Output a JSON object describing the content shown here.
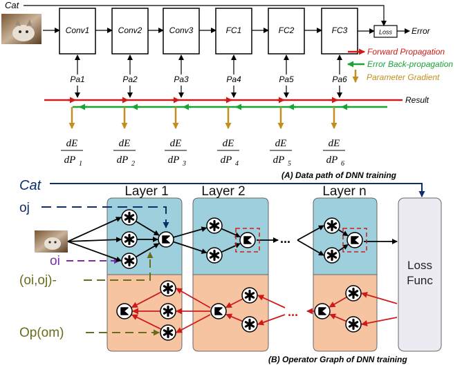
{
  "top": {
    "cat_label": "Cat",
    "layers": [
      "Conv1",
      "Conv2",
      "Conv3",
      "FC1",
      "FC2",
      "FC3"
    ],
    "params": [
      "Pa1",
      "Pa2",
      "Pa3",
      "Pa4",
      "Pa5",
      "Pa6"
    ],
    "loss_label": "Loss",
    "error_label": "Error",
    "result_label": "Result",
    "gradients": [
      {
        "num": "dE",
        "den": "dP",
        "sub": "1"
      },
      {
        "num": "dE",
        "den": "dP",
        "sub": "2"
      },
      {
        "num": "dE",
        "den": "dP",
        "sub": "3"
      },
      {
        "num": "dE",
        "den": "dP",
        "sub": "4"
      },
      {
        "num": "dE",
        "den": "dP",
        "sub": "5"
      },
      {
        "num": "dE",
        "den": "dP",
        "sub": "6"
      }
    ],
    "legend": {
      "forward": "Forward Propagation",
      "backward": "Error Back-propagation",
      "gradient": "Parameter Gradient"
    },
    "caption": "(A) Data path of DNN training"
  },
  "bottom": {
    "cat_label": "Cat",
    "oj_label": "oj",
    "oi_label": "oi",
    "oioj_label": "(oi,oj)-",
    "op_label": "Op(om)",
    "layer_titles": [
      "Layer 1",
      "Layer 2",
      "Layer n"
    ],
    "loss_func": [
      "Loss",
      "Func"
    ],
    "dots": "...",
    "caption": "(B) Operator Graph of DNN training"
  },
  "colors": {
    "forward": "#d01a1a",
    "backward": "#18a335",
    "gradient": "#c08f1e",
    "dark_blue": "#0c2d6b",
    "purple": "#7b2ea3",
    "olive": "#6b6b1e",
    "layer_top": "#9ecfdd",
    "layer_bottom": "#f6c4a0",
    "loss_box": "#ecebf2"
  }
}
